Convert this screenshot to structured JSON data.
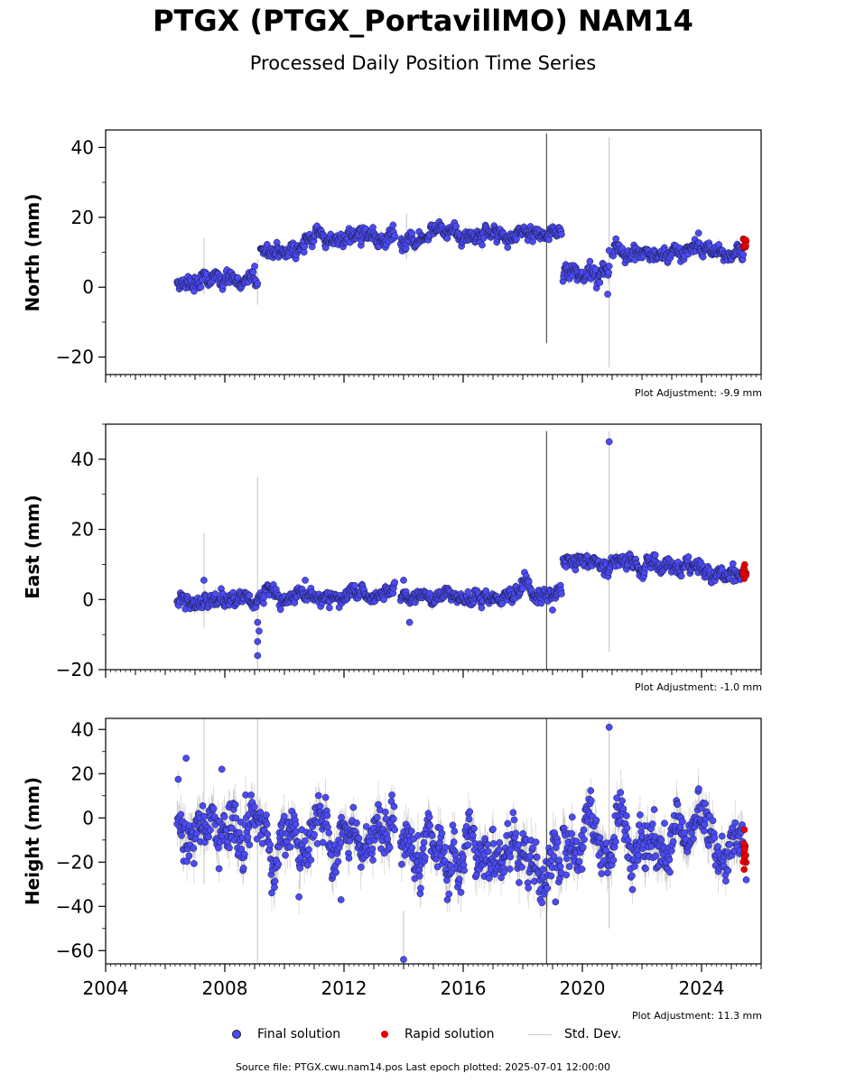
{
  "page": {
    "title": "PTGX (PTGX_PortavillMO) NAM14",
    "subtitle": "Processed Daily Position Time Series",
    "footer": "Source file: PTGX.cwu.nam14.pos  Last epoch plotted: 2025-07-01 12:00:00"
  },
  "legend": {
    "final_label": "Final solution",
    "rapid_label": "Rapid solution",
    "std_label": "Std. Dev."
  },
  "colors": {
    "final": "#4b4bf5",
    "rapid": "#e60000",
    "std": "#cccccc",
    "std_dark": "#555555"
  },
  "chart_data": [
    {
      "type": "scatter",
      "ylabel": "North (mm)",
      "adjustment": "Plot Adjustment: -9.9 mm",
      "xlim": [
        2004,
        2026
      ],
      "ylim": [
        -25,
        45
      ],
      "yticks": [
        -20,
        0,
        20,
        40
      ],
      "xticks": [
        2004,
        2008,
        2012,
        2016,
        2020,
        2024
      ],
      "show_x_tick_labels": false,
      "segments": [
        {
          "start": 2006.4,
          "end": 2009.1,
          "mean_start": 1.0,
          "mean_end": 2.0,
          "noise": 1.3
        },
        {
          "start": 2009.2,
          "end": 2013.7,
          "mean_start": 10.0,
          "mean_end": 14.5,
          "noise": 1.3
        },
        {
          "start": 2013.9,
          "end": 2019.3,
          "mean_start": 13.5,
          "mean_end": 15.5,
          "noise": 1.3
        },
        {
          "start": 2019.35,
          "end": 2020.9,
          "mean_start": 4.5,
          "mean_end": 4.5,
          "noise": 1.4
        },
        {
          "start": 2021.0,
          "end": 2025.4,
          "mean_start": 9.5,
          "mean_end": 11.5,
          "noise": 1.2
        }
      ],
      "rapid": {
        "start": 2025.4,
        "end": 2025.5,
        "mean": 12.0,
        "noise": 1.0
      },
      "outliers": [
        {
          "x": 2020.85,
          "y": -2.0
        },
        {
          "x": 2020.9,
          "y": 10.5
        },
        {
          "x": 2009.0,
          "y": 6.0
        },
        {
          "x": 2023.9,
          "y": 15.5
        }
      ],
      "error_spikes": [
        {
          "x": 2018.8,
          "y0": -16,
          "y1": 44,
          "dark": true
        },
        {
          "x": 2020.9,
          "y0": -23,
          "y1": 43,
          "dark": false
        },
        {
          "x": 2007.3,
          "y0": -2,
          "y1": 14,
          "dark": false
        },
        {
          "x": 2009.1,
          "y0": -5,
          "y1": 8,
          "dark": false
        },
        {
          "x": 2014.1,
          "y0": 8,
          "y1": 21,
          "dark": false
        }
      ]
    },
    {
      "type": "scatter",
      "ylabel": "East (mm)",
      "adjustment": "Plot Adjustment: -1.0 mm",
      "xlim": [
        2004,
        2026
      ],
      "ylim": [
        -20,
        50
      ],
      "yticks": [
        -20,
        0,
        20,
        40
      ],
      "xticks": [
        2004,
        2008,
        2012,
        2016,
        2020,
        2024
      ],
      "show_x_tick_labels": false,
      "segments": [
        {
          "start": 2006.4,
          "end": 2013.7,
          "mean_start": -1.0,
          "mean_end": 1.5,
          "noise": 1.2
        },
        {
          "start": 2013.9,
          "end": 2019.3,
          "mean_start": 0.0,
          "mean_end": 2.0,
          "noise": 1.2
        },
        {
          "start": 2019.35,
          "end": 2025.4,
          "mean_start": 11.0,
          "mean_end": 8.0,
          "noise": 1.3
        }
      ],
      "rapid": {
        "start": 2025.4,
        "end": 2025.5,
        "mean": 7.5,
        "noise": 1.0
      },
      "outliers": [
        {
          "x": 2020.9,
          "y": 45.0
        },
        {
          "x": 2009.1,
          "y": -16.0
        },
        {
          "x": 2009.1,
          "y": -12.0
        },
        {
          "x": 2009.15,
          "y": -9.0
        },
        {
          "x": 2009.1,
          "y": -6.5
        },
        {
          "x": 2007.3,
          "y": 5.5
        },
        {
          "x": 2010.7,
          "y": 5.5
        },
        {
          "x": 2014.0,
          "y": 5.5
        },
        {
          "x": 2014.2,
          "y": -6.5
        },
        {
          "x": 2019.0,
          "y": -3.0
        }
      ],
      "error_spikes": [
        {
          "x": 2018.8,
          "y0": -20,
          "y1": 48,
          "dark": true
        },
        {
          "x": 2020.9,
          "y0": -15,
          "y1": 48,
          "dark": false
        },
        {
          "x": 2009.1,
          "y0": -20,
          "y1": 35,
          "dark": false
        },
        {
          "x": 2007.3,
          "y0": -8,
          "y1": 19,
          "dark": false
        }
      ]
    },
    {
      "type": "scatter",
      "ylabel": "Height (mm)",
      "adjustment": "Plot Adjustment: 11.3 mm",
      "xlim": [
        2004,
        2026
      ],
      "ylim": [
        -66,
        45
      ],
      "yticks": [
        -60,
        -40,
        -20,
        0,
        20,
        40
      ],
      "xticks": [
        2004,
        2008,
        2012,
        2016,
        2020,
        2024
      ],
      "xtick_labels": [
        "2004",
        "2008",
        "2012",
        "2016",
        "2020",
        "2024"
      ],
      "show_x_tick_labels": true,
      "segments": [
        {
          "start": 2006.4,
          "end": 2013.7,
          "mean_start": -2.0,
          "mean_end": -12.0,
          "noise": 7.0
        },
        {
          "start": 2013.9,
          "end": 2019.3,
          "mean_start": -17.0,
          "mean_end": -22.0,
          "noise": 7.0
        },
        {
          "start": 2019.35,
          "end": 2025.4,
          "mean_start": -5.0,
          "mean_end": -12.0,
          "noise": 7.0
        }
      ],
      "rapid": {
        "start": 2025.4,
        "end": 2025.5,
        "mean": -15.0,
        "noise": 4.5
      },
      "outliers": [
        {
          "x": 2020.9,
          "y": 41.0
        },
        {
          "x": 2006.7,
          "y": 27.0
        },
        {
          "x": 2007.9,
          "y": 22.0
        },
        {
          "x": 2014.0,
          "y": -64.0
        },
        {
          "x": 2011.9,
          "y": -37.0
        },
        {
          "x": 2025.5,
          "y": -28.0
        },
        {
          "x": 2019.1,
          "y": -38.0
        }
      ],
      "error_spikes": [
        {
          "x": 2018.8,
          "y0": -66,
          "y1": 45,
          "dark": true
        },
        {
          "x": 2020.9,
          "y0": -50,
          "y1": 44,
          "dark": false
        },
        {
          "x": 2009.1,
          "y0": -66,
          "y1": 45,
          "dark": false
        },
        {
          "x": 2007.3,
          "y0": -30,
          "y1": 45,
          "dark": false
        },
        {
          "x": 2014.0,
          "y0": -66,
          "y1": -42,
          "dark": false
        }
      ]
    }
  ]
}
